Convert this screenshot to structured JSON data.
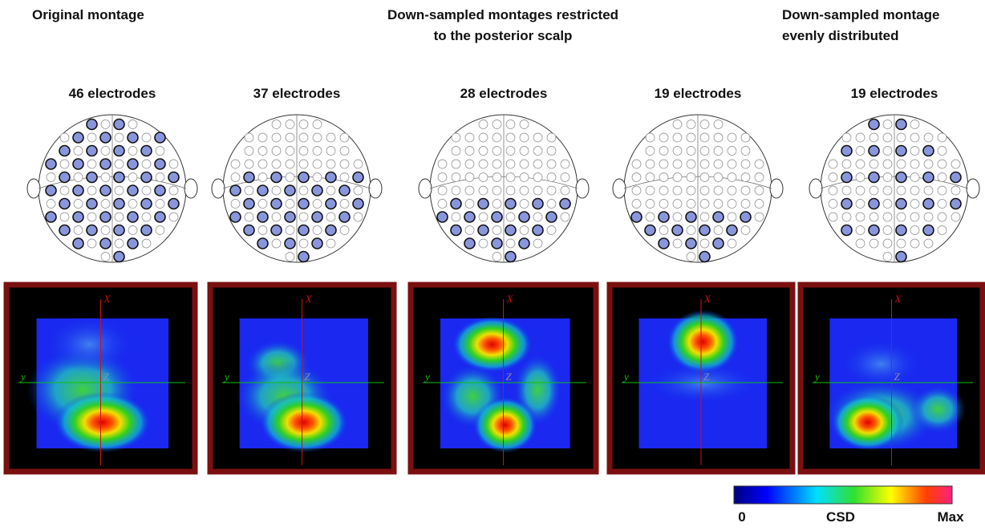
{
  "header": {
    "left": "Original montage",
    "center": [
      "Down-sampled montages restricted",
      "to the posterior scalp"
    ],
    "right": [
      "Down-sampled montage",
      "evenly distributed"
    ]
  },
  "panels": [
    {
      "label": "46 electrodes",
      "map_axes": {
        "x": "X",
        "y": "y",
        "z": "Z"
      }
    },
    {
      "label": "37 electrodes",
      "map_axes": {
        "x": "X",
        "y": "y",
        "z": "Z"
      }
    },
    {
      "label": "28 electrodes",
      "map_axes": {
        "x": "X",
        "y": "y",
        "z": "Z"
      }
    },
    {
      "label": "19 electrodes",
      "map_axes": {
        "x": "X",
        "y": "y",
        "z": "Z"
      }
    },
    {
      "label": "19 electrodes",
      "map_axes": {
        "x": "X",
        "y": "y",
        "z": "Z"
      }
    }
  ],
  "colorbar": {
    "min_label": "0",
    "title": "CSD",
    "max_label": "Max"
  }
}
